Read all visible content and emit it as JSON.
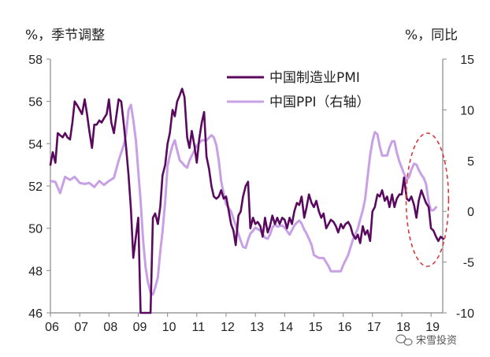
{
  "chart_data": {
    "type": "line",
    "left_axis_unit": "%，季节调整",
    "right_axis_unit": "%，同比",
    "x_tick_labels": [
      "06",
      "07",
      "08",
      "09",
      "10",
      "11",
      "12",
      "13",
      "14",
      "15",
      "16",
      "17",
      "18",
      "19"
    ],
    "x_range": [
      2006.0,
      2019.4
    ],
    "y_left_range": [
      46,
      58
    ],
    "y_left_ticks": [
      46,
      48,
      50,
      52,
      54,
      56,
      58
    ],
    "y_right_range": [
      -10,
      15
    ],
    "y_right_ticks": [
      -10,
      -5,
      0,
      5,
      10,
      15
    ],
    "legend_position": "top-center",
    "series": [
      {
        "name": "中国制造业PMI",
        "axis": "left",
        "color": "#5a0a5e",
        "points": [
          [
            2006.0,
            53.0
          ],
          [
            2006.08,
            53.6
          ],
          [
            2006.17,
            53.1
          ],
          [
            2006.25,
            54.5
          ],
          [
            2006.33,
            54.4
          ],
          [
            2006.42,
            54.3
          ],
          [
            2006.5,
            54.5
          ],
          [
            2006.58,
            54.3
          ],
          [
            2006.67,
            54.2
          ],
          [
            2006.75,
            55.0
          ],
          [
            2006.83,
            56.0
          ],
          [
            2006.92,
            55.8
          ],
          [
            2007.0,
            55.6
          ],
          [
            2007.08,
            55.4
          ],
          [
            2007.17,
            56.1
          ],
          [
            2007.25,
            55.4
          ],
          [
            2007.33,
            54.6
          ],
          [
            2007.42,
            53.8
          ],
          [
            2007.5,
            54.9
          ],
          [
            2007.58,
            54.9
          ],
          [
            2007.67,
            55.1
          ],
          [
            2007.75,
            55.0
          ],
          [
            2007.83,
            55.2
          ],
          [
            2007.92,
            55.4
          ],
          [
            2008.0,
            56.1
          ],
          [
            2008.08,
            55.0
          ],
          [
            2008.17,
            54.5
          ],
          [
            2008.25,
            55.3
          ],
          [
            2008.33,
            56.1
          ],
          [
            2008.42,
            56.0
          ],
          [
            2008.5,
            55.0
          ],
          [
            2008.58,
            53.9
          ],
          [
            2008.67,
            52.5
          ],
          [
            2008.75,
            50.9
          ],
          [
            2008.83,
            48.6
          ],
          [
            2008.92,
            49.6
          ],
          [
            2009.0,
            50.5
          ],
          [
            2009.08,
            46.0
          ],
          [
            2009.17,
            45.0
          ],
          [
            2009.25,
            44.0
          ],
          [
            2009.33,
            44.5
          ],
          [
            2009.42,
            45.0
          ],
          [
            2009.5,
            50.5
          ],
          [
            2009.58,
            50.7
          ],
          [
            2009.67,
            50.2
          ],
          [
            2009.75,
            51.0
          ],
          [
            2009.83,
            52.5
          ],
          [
            2009.92,
            53.0
          ],
          [
            2010.0,
            54.0
          ],
          [
            2010.08,
            54.5
          ],
          [
            2010.17,
            55.6
          ],
          [
            2010.25,
            55.3
          ],
          [
            2010.33,
            56.0
          ],
          [
            2010.42,
            56.3
          ],
          [
            2010.5,
            56.6
          ],
          [
            2010.58,
            56.2
          ],
          [
            2010.67,
            54.3
          ],
          [
            2010.75,
            53.8
          ],
          [
            2010.83,
            54.6
          ],
          [
            2010.92,
            53.9
          ],
          [
            2011.0,
            53.1
          ],
          [
            2011.08,
            54.2
          ],
          [
            2011.17,
            55.0
          ],
          [
            2011.25,
            55.5
          ],
          [
            2011.33,
            53.4
          ],
          [
            2011.42,
            52.8
          ],
          [
            2011.5,
            52.0
          ],
          [
            2011.58,
            51.5
          ],
          [
            2011.67,
            51.4
          ],
          [
            2011.75,
            51.5
          ],
          [
            2011.83,
            51.8
          ],
          [
            2011.92,
            51.4
          ],
          [
            2012.0,
            51.5
          ],
          [
            2012.08,
            50.9
          ],
          [
            2012.17,
            50.2
          ],
          [
            2012.25,
            49.9
          ],
          [
            2012.33,
            49.2
          ],
          [
            2012.42,
            50.6
          ],
          [
            2012.5,
            50.8
          ],
          [
            2012.58,
            51.5
          ],
          [
            2012.67,
            52.0
          ],
          [
            2012.75,
            52.2
          ],
          [
            2012.83,
            50.0
          ],
          [
            2012.92,
            50.5
          ],
          [
            2013.0,
            50.2
          ],
          [
            2013.08,
            50.3
          ],
          [
            2013.17,
            50.1
          ],
          [
            2013.25,
            49.6
          ],
          [
            2013.33,
            50.5
          ],
          [
            2013.42,
            49.8
          ],
          [
            2013.5,
            50.1
          ],
          [
            2013.58,
            50.6
          ],
          [
            2013.67,
            50.2
          ],
          [
            2013.75,
            50.5
          ],
          [
            2013.83,
            50.2
          ],
          [
            2013.92,
            50.5
          ],
          [
            2014.0,
            50.4
          ],
          [
            2014.08,
            50.0
          ],
          [
            2014.17,
            50.5
          ],
          [
            2014.25,
            50.2
          ],
          [
            2014.33,
            50.8
          ],
          [
            2014.42,
            51.2
          ],
          [
            2014.5,
            51.1
          ],
          [
            2014.58,
            51.5
          ],
          [
            2014.67,
            50.5
          ],
          [
            2014.75,
            51.0
          ],
          [
            2014.83,
            51.6
          ],
          [
            2014.92,
            51.2
          ],
          [
            2015.0,
            51.0
          ],
          [
            2015.08,
            51.3
          ],
          [
            2015.17,
            50.8
          ],
          [
            2015.25,
            50.5
          ],
          [
            2015.33,
            50.7
          ],
          [
            2015.42,
            50.0
          ],
          [
            2015.5,
            50.2
          ],
          [
            2015.58,
            50.4
          ],
          [
            2015.67,
            50.3
          ],
          [
            2015.75,
            50.1
          ],
          [
            2015.83,
            49.8
          ],
          [
            2015.92,
            50.2
          ],
          [
            2016.0,
            50.0
          ],
          [
            2016.08,
            50.2
          ],
          [
            2016.17,
            50.3
          ],
          [
            2016.25,
            50.1
          ],
          [
            2016.33,
            49.7
          ],
          [
            2016.42,
            49.5
          ],
          [
            2016.5,
            49.7
          ],
          [
            2016.58,
            49.3
          ],
          [
            2016.67,
            50.1
          ],
          [
            2016.75,
            49.7
          ],
          [
            2016.83,
            49.9
          ],
          [
            2016.92,
            49.4
          ],
          [
            2017.0,
            50.8
          ],
          [
            2017.08,
            51.0
          ],
          [
            2017.17,
            51.6
          ],
          [
            2017.25,
            51.5
          ],
          [
            2017.33,
            51.8
          ],
          [
            2017.42,
            51.3
          ],
          [
            2017.5,
            51.5
          ],
          [
            2017.58,
            51.0
          ],
          [
            2017.67,
            51.6
          ],
          [
            2017.75,
            51.0
          ],
          [
            2017.83,
            51.4
          ],
          [
            2017.92,
            51.6
          ],
          [
            2018.0,
            51.6
          ],
          [
            2018.08,
            52.4
          ],
          [
            2018.17,
            51.4
          ],
          [
            2018.25,
            51.3
          ],
          [
            2018.33,
            51.5
          ],
          [
            2018.42,
            51.1
          ],
          [
            2018.5,
            50.5
          ],
          [
            2018.58,
            51.3
          ],
          [
            2018.67,
            51.8
          ],
          [
            2018.75,
            51.5
          ],
          [
            2018.83,
            51.2
          ],
          [
            2018.92,
            51.0
          ],
          [
            2019.0,
            50.0
          ],
          [
            2019.08,
            49.9
          ],
          [
            2019.17,
            49.6
          ],
          [
            2019.25,
            49.4
          ],
          [
            2019.33,
            49.6
          ],
          [
            2019.42,
            49.5
          ]
        ]
      },
      {
        "name": "中国PPI（右轴）",
        "axis": "right",
        "color": "#c8a0e6",
        "points": [
          [
            2006.0,
            3.0
          ],
          [
            2006.17,
            2.9
          ],
          [
            2006.33,
            1.8
          ],
          [
            2006.5,
            3.4
          ],
          [
            2006.67,
            3.1
          ],
          [
            2006.83,
            3.4
          ],
          [
            2007.0,
            2.8
          ],
          [
            2007.17,
            2.7
          ],
          [
            2007.33,
            2.8
          ],
          [
            2007.5,
            2.4
          ],
          [
            2007.67,
            3.0
          ],
          [
            2007.83,
            2.6
          ],
          [
            2008.0,
            3.0
          ],
          [
            2008.17,
            3.3
          ],
          [
            2008.33,
            5.0
          ],
          [
            2008.5,
            6.5
          ],
          [
            2008.58,
            7.5
          ],
          [
            2008.67,
            10.0
          ],
          [
            2008.75,
            10.5
          ],
          [
            2008.83,
            9.0
          ],
          [
            2008.92,
            7.0
          ],
          [
            2009.0,
            4.0
          ],
          [
            2009.08,
            1.0
          ],
          [
            2009.17,
            -3.0
          ],
          [
            2009.25,
            -5.5
          ],
          [
            2009.33,
            -7.0
          ],
          [
            2009.42,
            -8.0
          ],
          [
            2009.5,
            -8.2
          ],
          [
            2009.58,
            -7.5
          ],
          [
            2009.67,
            -6.5
          ],
          [
            2009.75,
            -4.0
          ],
          [
            2009.83,
            -2.0
          ],
          [
            2009.92,
            1.0
          ],
          [
            2010.0,
            4.5
          ],
          [
            2010.08,
            5.5
          ],
          [
            2010.17,
            6.5
          ],
          [
            2010.25,
            7.0
          ],
          [
            2010.33,
            6.0
          ],
          [
            2010.42,
            5.0
          ],
          [
            2010.5,
            4.8
          ],
          [
            2010.58,
            4.5
          ],
          [
            2010.67,
            4.3
          ],
          [
            2010.75,
            5.0
          ],
          [
            2010.83,
            5.5
          ],
          [
            2010.92,
            6.0
          ],
          [
            2011.0,
            6.5
          ],
          [
            2011.17,
            7.0
          ],
          [
            2011.33,
            7.0
          ],
          [
            2011.5,
            7.5
          ],
          [
            2011.58,
            7.3
          ],
          [
            2011.67,
            6.5
          ],
          [
            2011.75,
            5.0
          ],
          [
            2011.83,
            3.0
          ],
          [
            2011.92,
            1.7
          ],
          [
            2012.0,
            0.7
          ],
          [
            2012.17,
            0.0
          ],
          [
            2012.33,
            -1.4
          ],
          [
            2012.5,
            -2.9
          ],
          [
            2012.58,
            -3.5
          ],
          [
            2012.67,
            -3.6
          ],
          [
            2012.75,
            -2.8
          ],
          [
            2012.83,
            -2.2
          ],
          [
            2012.92,
            -1.9
          ],
          [
            2013.0,
            -1.6
          ],
          [
            2013.17,
            -1.9
          ],
          [
            2013.33,
            -2.6
          ],
          [
            2013.42,
            -2.7
          ],
          [
            2013.5,
            -2.3
          ],
          [
            2013.58,
            -1.6
          ],
          [
            2013.67,
            -1.3
          ],
          [
            2013.75,
            -1.5
          ],
          [
            2013.92,
            -1.4
          ],
          [
            2014.0,
            -1.6
          ],
          [
            2014.17,
            -2.3
          ],
          [
            2014.33,
            -1.4
          ],
          [
            2014.42,
            -1.1
          ],
          [
            2014.5,
            -0.9
          ],
          [
            2014.58,
            -1.2
          ],
          [
            2014.67,
            -1.8
          ],
          [
            2014.75,
            -2.2
          ],
          [
            2014.83,
            -2.7
          ],
          [
            2014.92,
            -3.3
          ],
          [
            2015.0,
            -4.3
          ],
          [
            2015.17,
            -4.6
          ],
          [
            2015.33,
            -4.6
          ],
          [
            2015.5,
            -5.4
          ],
          [
            2015.58,
            -5.9
          ],
          [
            2015.67,
            -5.9
          ],
          [
            2015.83,
            -5.9
          ],
          [
            2015.92,
            -5.9
          ],
          [
            2016.0,
            -5.3
          ],
          [
            2016.17,
            -4.3
          ],
          [
            2016.33,
            -2.8
          ],
          [
            2016.5,
            -1.7
          ],
          [
            2016.58,
            -0.8
          ],
          [
            2016.67,
            0.1
          ],
          [
            2016.75,
            1.2
          ],
          [
            2016.83,
            3.3
          ],
          [
            2016.92,
            5.5
          ],
          [
            2017.0,
            6.9
          ],
          [
            2017.08,
            7.8
          ],
          [
            2017.17,
            7.6
          ],
          [
            2017.25,
            6.4
          ],
          [
            2017.33,
            5.5
          ],
          [
            2017.42,
            5.5
          ],
          [
            2017.5,
            5.5
          ],
          [
            2017.58,
            6.3
          ],
          [
            2017.67,
            6.9
          ],
          [
            2017.75,
            6.9
          ],
          [
            2017.83,
            5.8
          ],
          [
            2017.92,
            4.9
          ],
          [
            2018.0,
            4.3
          ],
          [
            2018.08,
            3.7
          ],
          [
            2018.17,
            3.1
          ],
          [
            2018.25,
            3.4
          ],
          [
            2018.33,
            4.1
          ],
          [
            2018.42,
            4.7
          ],
          [
            2018.5,
            4.6
          ],
          [
            2018.58,
            4.1
          ],
          [
            2018.67,
            3.6
          ],
          [
            2018.75,
            3.3
          ],
          [
            2018.83,
            2.7
          ],
          [
            2018.92,
            0.9
          ],
          [
            2019.0,
            0.1
          ],
          [
            2019.08,
            0.1
          ],
          [
            2019.17,
            0.4
          ]
        ]
      }
    ]
  },
  "legend": [
    {
      "label": "中国制造业PMI",
      "color": "#5a0a5e"
    },
    {
      "label": "中国PPI（右轴）",
      "color": "#c8a0e6"
    }
  ],
  "annotation": {
    "shape": "dashed-ellipse",
    "color": "#d9363e",
    "x_range": [
      2018.15,
      2019.6
    ],
    "y_left_range": [
      48.2,
      54.5
    ]
  },
  "watermark": {
    "text": "宋雪投资"
  }
}
